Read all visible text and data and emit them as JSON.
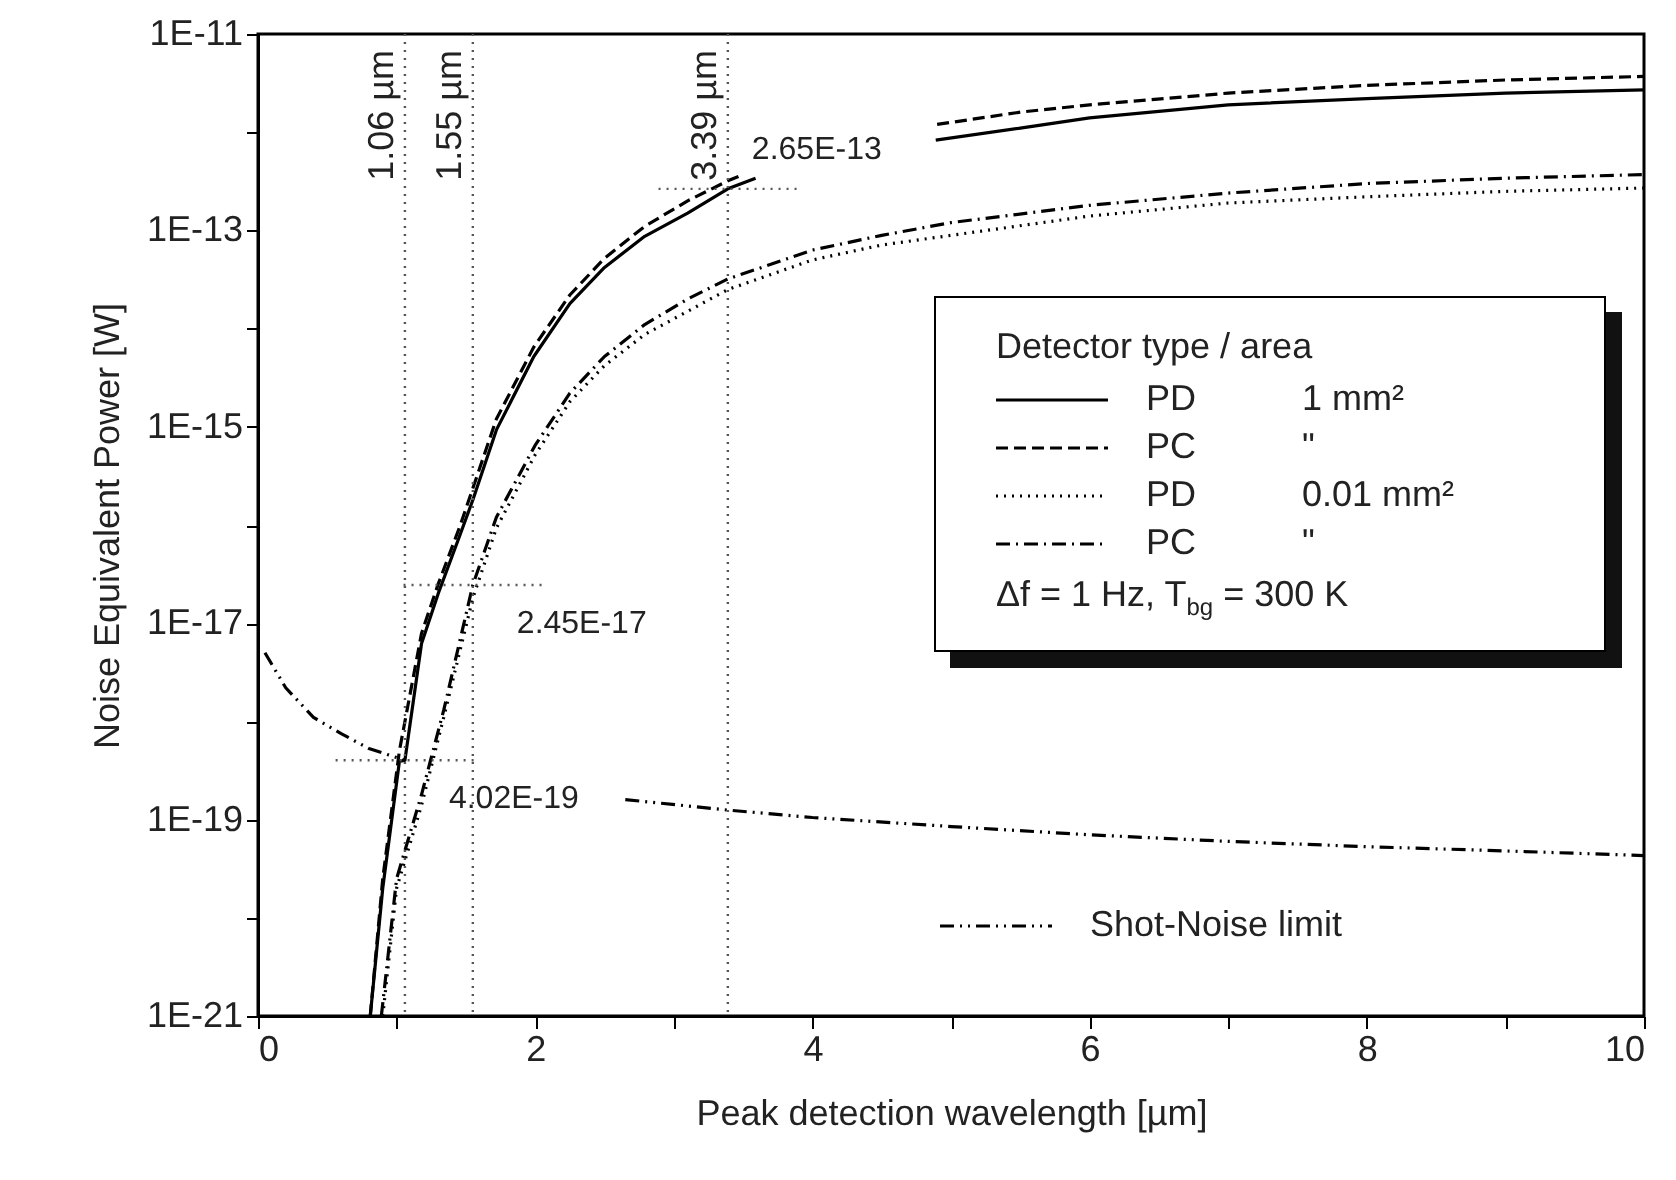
{
  "chart_data": {
    "type": "line",
    "xlabel": "Peak detection wavelength [µm]",
    "ylabel": "Noise Equivalent Power [W]",
    "legend_title": "Detector type / area",
    "log": "y",
    "grid": false,
    "legend": "right",
    "xlim": [
      0,
      10
    ],
    "xticks": [
      0,
      {
        "value": 1,
        "label": null
      },
      2,
      {
        "value": 3,
        "label": null
      },
      4,
      {
        "value": 5,
        "label": null
      },
      6,
      {
        "value": 7,
        "label": null
      },
      8,
      {
        "value": 9,
        "label": null
      },
      10
    ],
    "ylim": [
      1e-21,
      1e-11
    ],
    "yticks": [
      {
        "value": 1e-21,
        "label": "1E-21"
      },
      {
        "value": 1e-20,
        "label": null
      },
      {
        "value": 1e-19,
        "label": "1E-19"
      },
      {
        "value": 1e-18,
        "label": null
      },
      {
        "value": 1e-17,
        "label": "1E-17"
      },
      {
        "value": 1e-16,
        "label": null
      },
      {
        "value": 1e-15,
        "label": "1E-15"
      },
      {
        "value": 1e-14,
        "label": null
      },
      {
        "value": 1e-13,
        "label": "1E-13"
      },
      {
        "value": 1e-12,
        "label": null
      },
      {
        "value": 1e-11,
        "label": "1E-11"
      }
    ],
    "series": [
      {
        "name": "PD 1 mm²",
        "color": "#000000",
        "line_style": "solid",
        "x": [
          0.81,
          0.9,
          1.02,
          1.06,
          1.18,
          1.3,
          1.46,
          1.55,
          1.72,
          1.99,
          2.25,
          2.5,
          2.79,
          3.1,
          3.39,
          3.59,
          3.7,
          4.89,
          5.5,
          6,
          7,
          8,
          9,
          10
        ],
        "values": [
          1e-21,
          2e-20,
          3.9e-19,
          4.02e-19,
          6.2e-18,
          2e-17,
          8.1e-17,
          1.8e-16,
          9.3e-16,
          5.2e-15,
          1.8e-14,
          4.2e-14,
          8.7e-14,
          1.5e-13,
          2.65e-13,
          3.4e-13,
          null,
          8.3e-13,
          1.1e-12,
          1.4e-12,
          1.9e-12,
          2.2e-12,
          2.5e-12,
          2.7e-12
        ]
      },
      {
        "name": "PC \"",
        "color": "#000000",
        "line_style": "dashed",
        "x": [
          0.81,
          0.9,
          1.02,
          1.18,
          1.3,
          1.46,
          1.72,
          1.99,
          2.25,
          2.5,
          2.79,
          3.1,
          3.39,
          3.5,
          3.6,
          4.9,
          5.5,
          6,
          7,
          8,
          9,
          10
        ],
        "values": [
          1e-21,
          2.5e-20,
          5e-19,
          7.9e-18,
          2.5e-17,
          1e-16,
          1.2e-15,
          6.5e-15,
          2.2e-14,
          5.2e-14,
          1.1e-13,
          2e-13,
          3.2e-13,
          3.7e-13,
          null,
          1.2e-12,
          1.6e-12,
          1.9e-12,
          2.5e-12,
          3e-12,
          3.4e-12,
          3.7e-12
        ]
      },
      {
        "name": "PD 0.01 mm²",
        "color": "#000000",
        "line_style": "dotted",
        "x": [
          0.9,
          1.0,
          1.18,
          1.34,
          1.55,
          1.72,
          2.0,
          2.25,
          2.5,
          2.79,
          3.1,
          3.39,
          4,
          4.5,
          5,
          6,
          7,
          8,
          9,
          10
        ],
        "values": [
          1e-21,
          2e-20,
          1.4e-19,
          1.1e-18,
          1.8e-17,
          9.3e-17,
          5.2e-16,
          1.8e-15,
          4.2e-15,
          8.7e-15,
          1.5e-14,
          2.5e-14,
          5e-14,
          7.1e-14,
          8.9e-14,
          1.4e-13,
          1.9e-13,
          2.2e-13,
          2.5e-13,
          2.7e-13
        ]
      },
      {
        "name": "PC \"",
        "color": "#000000",
        "line_style": "dashdot",
        "x": [
          0.89,
          1.0,
          1.18,
          1.34,
          1.55,
          1.72,
          2.0,
          2.25,
          2.5,
          2.79,
          3.1,
          3.39,
          4,
          4.5,
          5,
          6,
          7,
          8,
          9,
          10
        ],
        "values": [
          1e-21,
          2.5e-20,
          1.8e-19,
          1.3e-18,
          2.45e-17,
          1.2e-16,
          6.5e-16,
          2.2e-15,
          5.2e-15,
          1.1e-14,
          2e-14,
          3.2e-14,
          6.3e-14,
          8.9e-14,
          1.2e-13,
          1.8e-13,
          2.4e-13,
          3e-13,
          3.4e-13,
          3.7e-13
        ]
      },
      {
        "name": "Shot-Noise limit",
        "color": "#000000",
        "line_style": "dashdotdot",
        "x": [
          0.05,
          0.2,
          0.4,
          0.6,
          0.8,
          1.06,
          1.1,
          2.65,
          3.39,
          4,
          5,
          6,
          7,
          8,
          9,
          10
        ],
        "values": [
          5e-18,
          2.2e-18,
          1.1e-18,
          7.5e-19,
          5.3e-19,
          4.02e-19,
          null,
          1.6e-19,
          1.25e-19,
          1.05e-19,
          8.5e-20,
          7e-20,
          6e-20,
          5.3e-20,
          4.8e-20,
          4.3e-20
        ]
      }
    ],
    "ref_lines": [
      {
        "axis": "x",
        "value": 1.06,
        "label": "1.06 µm"
      },
      {
        "axis": "x",
        "value": 1.55,
        "label": "1.55 µm"
      },
      {
        "axis": "x",
        "value": 3.39,
        "label": "3.39 µm"
      }
    ],
    "annotations": [
      {
        "text": "4.02E-19",
        "x": 1.06,
        "y": 4.02e-19
      },
      {
        "text": "2.45E-17",
        "x": 1.55,
        "y": 2.45e-17
      },
      {
        "text": "2.65E-13",
        "x": 3.39,
        "y": 2.65e-13
      },
      "Δf = 1 Hz, T$_{bg}$ = 300 K"
    ]
  }
}
